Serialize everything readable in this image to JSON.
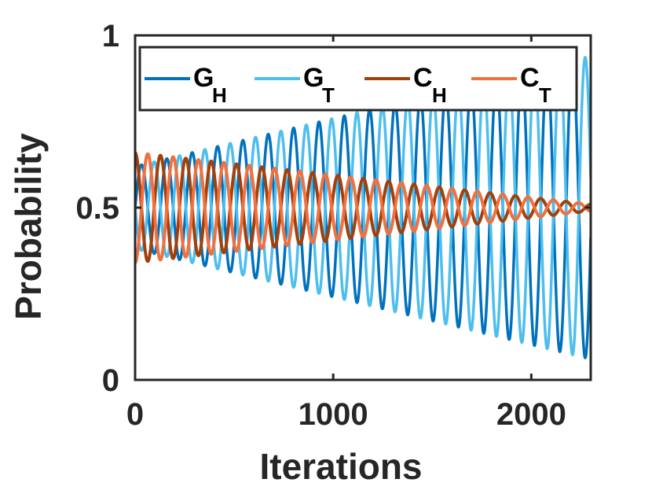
{
  "chart_data": {
    "type": "line",
    "title": "",
    "xlabel": "Iterations",
    "ylabel": "Probability",
    "xlim": [
      0,
      2300
    ],
    "ylim": [
      0,
      1
    ],
    "xticks": [
      {
        "value": 0,
        "label": "0"
      },
      {
        "value": 1000,
        "label": "1000"
      },
      {
        "value": 2000,
        "label": "2000"
      }
    ],
    "yticks": [
      {
        "value": 0,
        "label": "0"
      },
      {
        "value": 0.5,
        "label": "0.5"
      },
      {
        "value": 1,
        "label": "1"
      }
    ],
    "grid": false,
    "legend_position": "top",
    "series": [
      {
        "name": "G_H",
        "label_main": "G",
        "label_sub": "H",
        "color": "#0072BD",
        "baseline": 0.5,
        "amp_start": 0.12,
        "amp_end": 0.44,
        "period": 128,
        "phase": 0,
        "stroke": "thin"
      },
      {
        "name": "G_T",
        "label_main": "G",
        "label_sub": "T",
        "color": "#4DBEEE",
        "baseline": 0.5,
        "amp_start": 0.12,
        "amp_end": 0.44,
        "period": 128,
        "phase": 3.14159,
        "stroke": "thin"
      },
      {
        "name": "C_H",
        "label_main": "C",
        "label_sub": "H",
        "color": "#A2400C",
        "baseline": 0.5,
        "amp_start": 0.16,
        "amp_end": 0.01,
        "period": 128,
        "phase": 1.5708,
        "stroke": "thick"
      },
      {
        "name": "C_T",
        "label_main": "C",
        "label_sub": "T",
        "color": "#F0703F",
        "baseline": 0.5,
        "amp_start": 0.16,
        "amp_end": 0.01,
        "period": 128,
        "phase": 4.7124,
        "stroke": "thick"
      }
    ]
  }
}
